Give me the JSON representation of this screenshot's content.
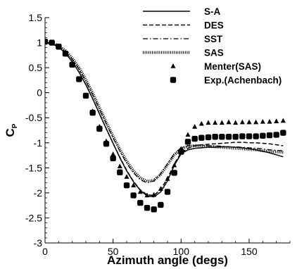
{
  "chart_data": {
    "type": "line",
    "xlabel": "Azimuth angle (degs)",
    "ylabel": "C",
    "ylabel_subscript": "P",
    "xlim": [
      0,
      180
    ],
    "ylim": [
      -3,
      1.5
    ],
    "xticks": [
      0,
      50,
      100,
      150
    ],
    "yticks": [
      1.5,
      1,
      0.5,
      0,
      -0.5,
      -1,
      -1.5,
      -2,
      -2.5,
      -3
    ],
    "ytick_labels": [
      "1.5",
      "1",
      "0.5",
      "0",
      "-0.5",
      "-1",
      "-1.5",
      "-2",
      "-2.5",
      "-3"
    ],
    "grid": false,
    "legend_position": "top-right",
    "series": [
      {
        "name": "S-A",
        "kind": "line",
        "style": "solid",
        "color": "#000000",
        "x": [
          0,
          5,
          10,
          15,
          20,
          25,
          30,
          35,
          40,
          45,
          50,
          55,
          60,
          65,
          70,
          75,
          80,
          85,
          90,
          95,
          100,
          105,
          110,
          115,
          120,
          125,
          130,
          135,
          140,
          145,
          150,
          155,
          160,
          165,
          170,
          175
        ],
        "y": [
          1.0,
          0.98,
          0.91,
          0.79,
          0.62,
          0.41,
          0.16,
          -0.12,
          -0.42,
          -0.72,
          -1.01,
          -1.3,
          -1.56,
          -1.78,
          -1.95,
          -2.06,
          -2.08,
          -1.98,
          -1.76,
          -1.45,
          -1.22,
          -1.14,
          -1.11,
          -1.1,
          -1.09,
          -1.09,
          -1.08,
          -1.08,
          -1.09,
          -1.1,
          -1.12,
          -1.14,
          -1.17,
          -1.2,
          -1.24,
          -1.28
        ]
      },
      {
        "name": "DES",
        "kind": "line",
        "style": "dashed",
        "color": "#000000",
        "x": [
          0,
          5,
          10,
          15,
          20,
          25,
          30,
          35,
          40,
          45,
          50,
          55,
          60,
          65,
          70,
          75,
          80,
          85,
          90,
          95,
          100,
          105,
          110,
          115,
          120,
          125,
          130,
          135,
          140,
          145,
          150,
          155,
          160,
          165,
          170,
          175
        ],
        "y": [
          1.0,
          0.98,
          0.91,
          0.79,
          0.62,
          0.41,
          0.16,
          -0.12,
          -0.42,
          -0.72,
          -1.01,
          -1.29,
          -1.55,
          -1.77,
          -1.94,
          -2.04,
          -2.05,
          -1.93,
          -1.71,
          -1.42,
          -1.2,
          -1.11,
          -1.06,
          -1.04,
          -1.03,
          -1.02,
          -1.01,
          -1.0,
          -0.99,
          -0.99,
          -1.0,
          -1.0,
          -1.01,
          -1.02,
          -1.04,
          -1.06
        ]
      },
      {
        "name": "SST",
        "kind": "line",
        "style": "dashdot",
        "color": "#000000",
        "x": [
          0,
          5,
          10,
          15,
          20,
          25,
          30,
          35,
          40,
          45,
          50,
          55,
          60,
          65,
          70,
          75,
          80,
          85,
          90,
          95,
          100,
          105,
          110,
          115,
          120,
          125,
          130,
          135,
          140,
          145,
          150,
          155,
          160,
          165,
          170,
          175
        ],
        "y": [
          1.0,
          0.99,
          0.93,
          0.82,
          0.67,
          0.47,
          0.23,
          -0.04,
          -0.33,
          -0.62,
          -0.9,
          -1.17,
          -1.41,
          -1.6,
          -1.74,
          -1.8,
          -1.76,
          -1.62,
          -1.42,
          -1.22,
          -1.1,
          -1.06,
          -1.05,
          -1.05,
          -1.06,
          -1.06,
          -1.07,
          -1.08,
          -1.08,
          -1.09,
          -1.1,
          -1.11,
          -1.12,
          -1.14,
          -1.15,
          -1.16
        ]
      },
      {
        "name": "SAS",
        "kind": "line",
        "style": "dotted-thick",
        "color": "#000000",
        "x": [
          0,
          5,
          10,
          15,
          20,
          25,
          30,
          35,
          40,
          45,
          50,
          55,
          60,
          65,
          70,
          75,
          80,
          85,
          90,
          95,
          100,
          105,
          110,
          115,
          120,
          125,
          130,
          135,
          140,
          145,
          150,
          155,
          160,
          165,
          170,
          175
        ],
        "y": [
          1.0,
          0.99,
          0.94,
          0.84,
          0.69,
          0.5,
          0.26,
          -0.01,
          -0.3,
          -0.59,
          -0.87,
          -1.13,
          -1.37,
          -1.56,
          -1.7,
          -1.77,
          -1.75,
          -1.63,
          -1.44,
          -1.24,
          -1.12,
          -1.07,
          -1.06,
          -1.06,
          -1.07,
          -1.08,
          -1.09,
          -1.1,
          -1.11,
          -1.12,
          -1.13,
          -1.14,
          -1.16,
          -1.17,
          -1.18,
          -1.19
        ]
      },
      {
        "name": "Menter(SAS)",
        "kind": "marker",
        "marker": "triangle",
        "color": "#000000",
        "x": [
          0,
          5,
          10,
          15,
          20,
          25,
          30,
          35,
          40,
          45,
          50,
          55,
          60,
          65,
          70,
          75,
          80,
          85,
          90,
          95,
          100,
          105,
          110,
          115,
          120,
          125,
          130,
          135,
          140,
          145,
          150,
          155,
          160,
          165,
          170,
          175
        ],
        "y": [
          1.02,
          1.0,
          0.93,
          0.78,
          0.55,
          0.26,
          -0.05,
          -0.37,
          -0.68,
          -0.97,
          -1.23,
          -1.47,
          -1.68,
          -1.85,
          -1.98,
          -2.05,
          -2.04,
          -1.92,
          -1.72,
          -1.45,
          -1.12,
          -0.84,
          -0.68,
          -0.62,
          -0.6,
          -0.6,
          -0.6,
          -0.59,
          -0.6,
          -0.59,
          -0.59,
          -0.59,
          -0.58,
          -0.58,
          -0.57,
          -0.56
        ]
      },
      {
        "name": "Exp.(Achenbach)",
        "kind": "marker",
        "marker": "square",
        "color": "#000000",
        "x": [
          0,
          5,
          10,
          15,
          20,
          25,
          30,
          35,
          40,
          45,
          50,
          55,
          60,
          65,
          70,
          75,
          80,
          85,
          90,
          95,
          100,
          105,
          110,
          115,
          120,
          125,
          130,
          135,
          140,
          145,
          150,
          155,
          160,
          165,
          170,
          175
        ],
        "y": [
          1.02,
          1.0,
          0.92,
          0.78,
          0.56,
          0.27,
          -0.06,
          -0.4,
          -0.72,
          -1.02,
          -1.31,
          -1.59,
          -1.85,
          -2.05,
          -2.2,
          -2.3,
          -2.33,
          -2.24,
          -1.98,
          -1.6,
          -1.18,
          -0.98,
          -0.92,
          -0.9,
          -0.89,
          -0.88,
          -0.88,
          -0.88,
          -0.88,
          -0.87,
          -0.87,
          -0.87,
          -0.86,
          -0.85,
          -0.84,
          -0.8
        ]
      }
    ]
  }
}
